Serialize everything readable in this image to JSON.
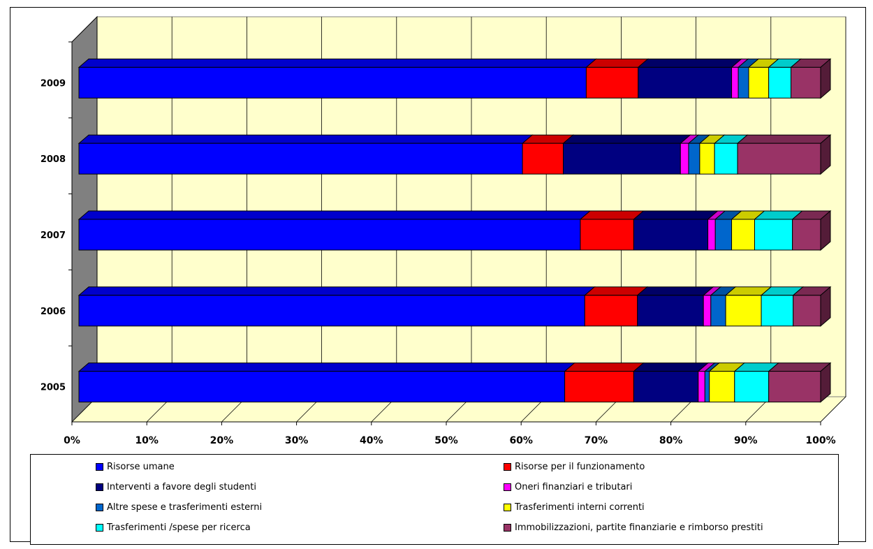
{
  "chart_data": {
    "type": "bar",
    "orientation": "horizontal",
    "stacked_percent": true,
    "categories": [
      "2005",
      "2006",
      "2007",
      "2008",
      "2009"
    ],
    "x_ticks": [
      "0%",
      "10%",
      "20%",
      "30%",
      "40%",
      "50%",
      "60%",
      "70%",
      "80%",
      "90%",
      "100%"
    ],
    "xlim": [
      0,
      100
    ],
    "grid": true,
    "legend_position": "bottom",
    "series": [
      {
        "name": "Risorse umane",
        "color": "#0000FF",
        "values": [
          65.5,
          68.2,
          67.6,
          59.8,
          68.4
        ]
      },
      {
        "name": "Risorse per il funzionamento",
        "color": "#FF0000",
        "values": [
          9.3,
          7.1,
          7.2,
          5.5,
          7.0
        ]
      },
      {
        "name": "Interventi a favore degli studenti",
        "color": "#000080",
        "values": [
          8.7,
          8.9,
          10.0,
          15.8,
          12.6
        ]
      },
      {
        "name": "Oneri finanziari e tributari",
        "color": "#FF00FF",
        "values": [
          0.9,
          1.0,
          1.0,
          1.1,
          0.9
        ]
      },
      {
        "name": "Altre spese e trasferimenti esterni",
        "color": "#0066CC",
        "values": [
          0.6,
          2.0,
          2.2,
          1.5,
          1.4
        ]
      },
      {
        "name": "Trasferimenti interni correnti",
        "color": "#FFFF00",
        "values": [
          3.4,
          4.8,
          3.1,
          2.0,
          2.7
        ]
      },
      {
        "name": "Trasferimenti /spese per ricerca",
        "color": "#00FFFF",
        "values": [
          4.6,
          4.3,
          5.1,
          3.1,
          3.0
        ]
      },
      {
        "name": "Immobilizzazioni, partite finanziarie e rimborso prestiti",
        "color": "#993366",
        "values": [
          7.0,
          3.7,
          3.8,
          11.2,
          4.0
        ]
      }
    ]
  },
  "colors": {
    "plot_background": "#FFFFCC",
    "side_wall": "#808080"
  }
}
